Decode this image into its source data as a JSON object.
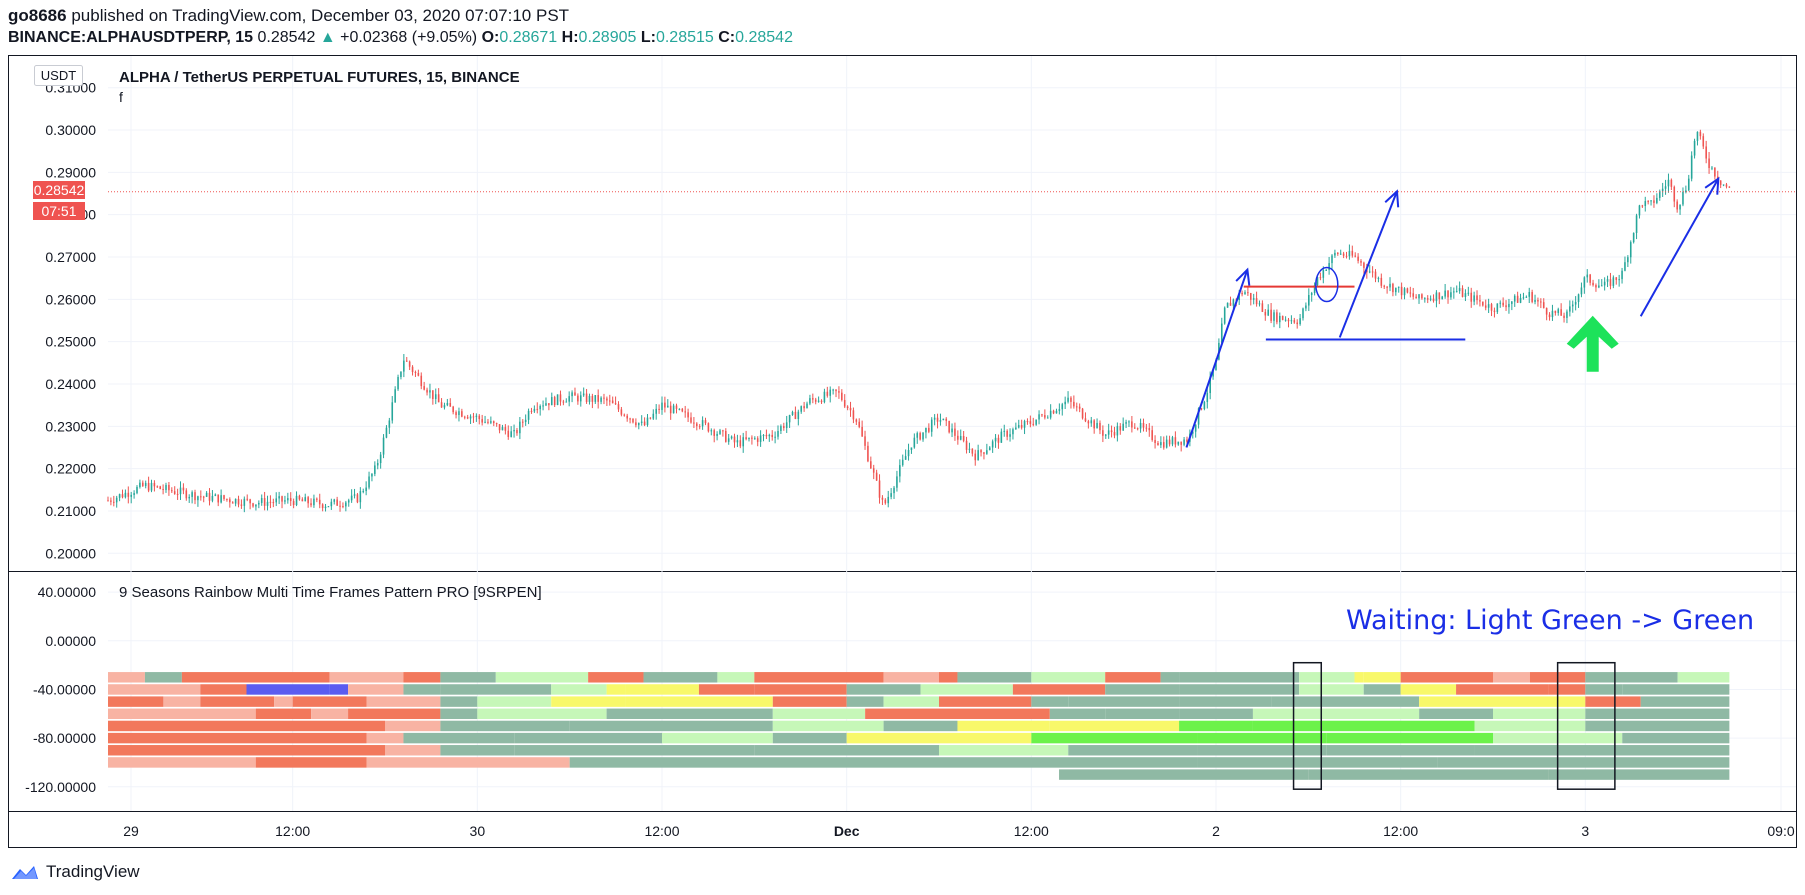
{
  "header": {
    "author": "go8686",
    "published_text": "published on TradingView.com, December 03, 2020 07:07:10 PST",
    "symbol": "BINANCE:ALPHAUSDTPERP, 15",
    "last": "0.28542",
    "change_arrow": "▲",
    "change": "+0.02368 (+9.05%)",
    "o_label": "O:",
    "o": "0.28671",
    "h_label": "H:",
    "h": "0.28905",
    "l_label": "L:",
    "l": "0.28515",
    "c_label": "C:",
    "c": "0.28542"
  },
  "colors": {
    "up": "#26a69a",
    "down": "#ef5350",
    "annotation_blue": "#1a2ee6",
    "annotation_red": "#e53935",
    "arrow_green": "#1de25a",
    "price_line": "#ef5350"
  },
  "chart_data": [
    {
      "type": "candlestick",
      "title": "ALPHA / TetherUS PERPETUAL FUTURES, 15, BINANCE",
      "subtitle": "f",
      "currency_button": "USDT",
      "y_tick_labels": [
        "0.31000",
        "0.30000",
        "0.29000",
        "0.28000",
        "0.27000",
        "0.26000",
        "0.25000",
        "0.24000",
        "0.23000",
        "0.22000",
        "0.21000",
        "0.20000"
      ],
      "ylim": [
        0.197,
        0.313
      ],
      "x_tick_labels": [
        "29",
        "12:00",
        "30",
        "12:00",
        "Dec",
        "12:00",
        "2",
        "12:00",
        "3",
        "09:0"
      ],
      "x_ticks_day": [
        0,
        1.0,
        2.0,
        3.0,
        4.0,
        5.0,
        6.0,
        7.0,
        8.0,
        9.0
      ],
      "current_price_label": "0.28542",
      "countdown_label": "07:51",
      "current_price": 0.28542,
      "path_day": [
        0,
        0.2,
        0.5,
        0.8,
        1.0,
        1.2,
        1.35,
        1.45,
        1.5,
        1.6,
        1.8,
        2.0,
        2.2,
        2.3,
        2.5,
        2.7,
        2.9,
        3.0,
        3.2,
        3.4,
        3.6,
        3.8,
        3.95,
        4.05,
        4.2,
        4.35,
        4.5,
        4.7,
        4.85,
        5.0,
        5.2,
        5.4,
        5.55,
        5.7,
        5.85,
        5.95,
        6.0,
        6.05,
        6.15,
        6.3,
        6.45,
        6.55,
        6.65,
        6.75,
        6.9,
        7.1,
        7.3,
        7.5,
        7.7,
        7.8,
        7.9,
        8.0,
        8.1,
        8.2,
        8.3,
        8.35,
        8.45,
        8.5,
        8.55,
        8.6,
        8.67,
        8.73,
        8.78
      ],
      "path_price": [
        0.2125,
        0.216,
        0.2135,
        0.212,
        0.2125,
        0.2115,
        0.213,
        0.22,
        0.228,
        0.246,
        0.235,
        0.232,
        0.228,
        0.235,
        0.237,
        0.236,
        0.23,
        0.235,
        0.231,
        0.226,
        0.228,
        0.236,
        0.238,
        0.232,
        0.211,
        0.226,
        0.232,
        0.223,
        0.228,
        0.231,
        0.236,
        0.228,
        0.231,
        0.226,
        0.227,
        0.238,
        0.245,
        0.258,
        0.262,
        0.256,
        0.255,
        0.265,
        0.271,
        0.27,
        0.264,
        0.26,
        0.262,
        0.258,
        0.261,
        0.257,
        0.256,
        0.265,
        0.263,
        0.266,
        0.283,
        0.282,
        0.288,
        0.282,
        0.287,
        0.3,
        0.292,
        0.288,
        0.286
      ],
      "candle_count": 560,
      "annotations": [
        {
          "kind": "arrow",
          "color": "blue",
          "from": [
            5.84,
            0.225
          ],
          "to": [
            6.17,
            0.267
          ]
        },
        {
          "kind": "line",
          "color": "red",
          "from": [
            6.15,
            0.263
          ],
          "to": [
            6.75,
            0.263
          ]
        },
        {
          "kind": "ellipse",
          "color": "blue",
          "center": [
            6.6,
            0.2635
          ]
        },
        {
          "kind": "line",
          "color": "blue",
          "from": [
            6.27,
            0.2505
          ],
          "to": [
            7.35,
            0.2505
          ]
        },
        {
          "kind": "arrow",
          "color": "blue",
          "from": [
            6.67,
            0.251
          ],
          "to": [
            6.98,
            0.2855
          ]
        },
        {
          "kind": "big-arrow-up",
          "color": "green",
          "at": [
            8.04,
            0.2495
          ]
        },
        {
          "kind": "arrow",
          "color": "blue",
          "from": [
            8.3,
            0.256
          ],
          "to": [
            8.72,
            0.2885
          ]
        }
      ]
    },
    {
      "type": "heatmap",
      "title": "9 Seasons Rainbow Multi Time Frames Pattern PRO [9SRPEN]",
      "y_tick_labels": [
        "40.00000",
        "0.00000",
        "-40.00000",
        "-80.00000",
        "-120.00000"
      ],
      "y_tick_values": [
        40,
        0,
        -40,
        -80,
        -120
      ],
      "ylim": [
        -135,
        50
      ],
      "annotation_text": "Waiting: Light Green -> Green",
      "highlight_boxes_day": [
        [
          6.42,
          6.57
        ],
        [
          7.85,
          8.16
        ]
      ],
      "rows": [
        {
          "y": -30,
          "start": 0,
          "segments": [
            [
              0.2,
              "lightred"
            ],
            [
              0.4,
              "teal"
            ],
            [
              1.2,
              "red"
            ],
            [
              1.6,
              "lightred"
            ],
            [
              1.8,
              "red"
            ],
            [
              2.1,
              "teal"
            ],
            [
              2.6,
              "lightgreen"
            ],
            [
              2.9,
              "red"
            ],
            [
              3.3,
              "teal"
            ],
            [
              3.5,
              "lightgreen"
            ],
            [
              4.2,
              "red"
            ],
            [
              4.5,
              "lightred"
            ],
            [
              4.6,
              "red"
            ],
            [
              5.0,
              "teal"
            ],
            [
              5.4,
              "lightgreen"
            ],
            [
              5.7,
              "red"
            ],
            [
              5.8,
              "teal"
            ],
            [
              6.45,
              "teal"
            ],
            [
              6.75,
              "lightgreen"
            ],
            [
              6.8,
              "yellow"
            ],
            [
              7.0,
              "yellow"
            ],
            [
              7.5,
              "red"
            ],
            [
              7.7,
              "lightred"
            ],
            [
              8.0,
              "red"
            ],
            [
              8.5,
              "teal"
            ],
            [
              8.78,
              "lightgreen"
            ]
          ]
        },
        {
          "y": -40,
          "start": 0,
          "segments": [
            [
              0.5,
              "lightred"
            ],
            [
              0.75,
              "red"
            ],
            [
              1.2,
              "blue"
            ],
            [
              1.3,
              "blue"
            ],
            [
              1.6,
              "lightred"
            ],
            [
              1.8,
              "teal"
            ],
            [
              2.4,
              "teal"
            ],
            [
              2.7,
              "lightgreen"
            ],
            [
              2.8,
              "yellow"
            ],
            [
              3.2,
              "yellow"
            ],
            [
              3.5,
              "red"
            ],
            [
              4.0,
              "red"
            ],
            [
              4.4,
              "teal"
            ],
            [
              4.9,
              "lightgreen"
            ],
            [
              5.4,
              "red"
            ],
            [
              5.8,
              "teal"
            ],
            [
              6.45,
              "teal"
            ],
            [
              6.8,
              "lightgreen"
            ],
            [
              7.0,
              "teal"
            ],
            [
              7.3,
              "yellow"
            ],
            [
              7.8,
              "red"
            ],
            [
              8.0,
              "red"
            ],
            [
              8.2,
              "teal"
            ],
            [
              8.78,
              "teal"
            ]
          ]
        },
        {
          "y": -50,
          "start": 0,
          "segments": [
            [
              0.3,
              "red"
            ],
            [
              0.5,
              "lightred"
            ],
            [
              0.9,
              "red"
            ],
            [
              1.0,
              "lightred"
            ],
            [
              1.4,
              "red"
            ],
            [
              1.8,
              "lightred"
            ],
            [
              2.0,
              "teal"
            ],
            [
              2.4,
              "lightgreen"
            ],
            [
              2.8,
              "yellow"
            ],
            [
              3.6,
              "yellow"
            ],
            [
              4.0,
              "red"
            ],
            [
              4.2,
              "teal"
            ],
            [
              4.5,
              "lightgreen"
            ],
            [
              5.0,
              "red"
            ],
            [
              5.2,
              "teal"
            ],
            [
              5.8,
              "teal"
            ],
            [
              6.3,
              "teal"
            ],
            [
              7.1,
              "teal"
            ],
            [
              7.5,
              "yellow"
            ],
            [
              8.0,
              "yellow"
            ],
            [
              8.3,
              "red"
            ],
            [
              8.78,
              "teal"
            ]
          ]
        },
        {
          "y": -60,
          "start": 0,
          "segments": [
            [
              0.8,
              "lightred"
            ],
            [
              1.1,
              "red"
            ],
            [
              1.3,
              "lightred"
            ],
            [
              1.8,
              "red"
            ],
            [
              2.0,
              "teal"
            ],
            [
              2.7,
              "lightgreen"
            ],
            [
              3.6,
              "teal"
            ],
            [
              4.1,
              "lightgreen"
            ],
            [
              4.5,
              "red"
            ],
            [
              5.1,
              "red"
            ],
            [
              5.4,
              "teal"
            ],
            [
              5.8,
              "teal"
            ],
            [
              6.2,
              "teal"
            ],
            [
              7.1,
              "lightgreen"
            ],
            [
              7.5,
              "teal"
            ],
            [
              8.0,
              "lightgreen"
            ],
            [
              8.78,
              "teal"
            ]
          ]
        },
        {
          "y": -70,
          "start": 0,
          "segments": [
            [
              1.5,
              "red"
            ],
            [
              1.8,
              "lightred"
            ],
            [
              2.5,
              "teal"
            ],
            [
              3.6,
              "teal"
            ],
            [
              4.2,
              "lightgreen"
            ],
            [
              4.6,
              "teal"
            ],
            [
              5.1,
              "yellow"
            ],
            [
              5.8,
              "yellow"
            ],
            [
              6.2,
              "green"
            ],
            [
              7.4,
              "green"
            ],
            [
              8.0,
              "lightgreen"
            ],
            [
              8.78,
              "teal"
            ]
          ]
        },
        {
          "y": -80,
          "start": 0,
          "segments": [
            [
              1.4,
              "red"
            ],
            [
              1.6,
              "lightred"
            ],
            [
              2.2,
              "teal"
            ],
            [
              3.0,
              "teal"
            ],
            [
              3.6,
              "lightgreen"
            ],
            [
              4.0,
              "teal"
            ],
            [
              4.5,
              "yellow"
            ],
            [
              5.0,
              "yellow"
            ],
            [
              5.9,
              "green"
            ],
            [
              6.6,
              "green"
            ],
            [
              7.5,
              "green"
            ],
            [
              8.2,
              "lightgreen"
            ],
            [
              8.78,
              "teal"
            ]
          ]
        },
        {
          "y": -90,
          "start": 0,
          "segments": [
            [
              1.5,
              "red"
            ],
            [
              1.8,
              "lightred"
            ],
            [
              2.2,
              "teal"
            ],
            [
              3.5,
              "teal"
            ],
            [
              4.5,
              "teal"
            ],
            [
              5.2,
              "lightgreen"
            ],
            [
              5.9,
              "teal"
            ],
            [
              6.6,
              "teal"
            ],
            [
              7.4,
              "teal"
            ],
            [
              8.78,
              "teal"
            ]
          ]
        },
        {
          "y": -100,
          "start": 0,
          "segments": [
            [
              0.8,
              "lightred"
            ],
            [
              1.4,
              "red"
            ],
            [
              2.5,
              "lightred"
            ],
            [
              3.0,
              "teal"
            ],
            [
              4.5,
              "teal"
            ],
            [
              5.9,
              "teal"
            ],
            [
              7.2,
              "teal"
            ],
            [
              8.78,
              "teal"
            ]
          ]
        },
        {
          "y": -110,
          "start": 5.15,
          "segments": [
            [
              6.5,
              "teal"
            ],
            [
              7.8,
              "teal"
            ],
            [
              8.78,
              "teal"
            ]
          ]
        }
      ],
      "palette": {
        "red": "#f2785c",
        "lightred": "#f8b3a3",
        "teal": "#8fb9a4",
        "lightgreen": "#c6f7b8",
        "green": "#6cf24a",
        "yellow": "#f8f86a",
        "blue": "#5b5cf0"
      }
    }
  ],
  "footer": {
    "brand": "TradingView"
  }
}
